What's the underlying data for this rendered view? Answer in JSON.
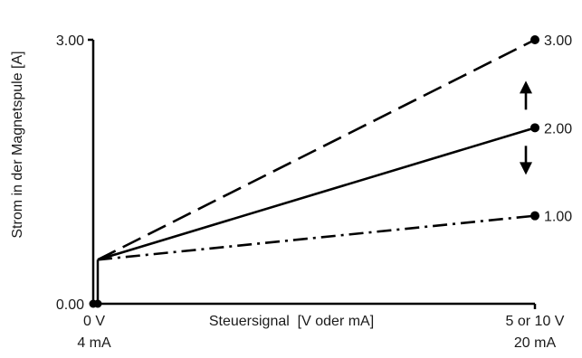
{
  "chart_data": {
    "type": "line",
    "ylabel": "Strom in der Magnetspule [A]",
    "xlabel": "Steuersignal  [V oder mA]",
    "ylim": [
      0,
      3
    ],
    "y_ticks": [
      "3.00",
      "0.00"
    ],
    "x_ticks": [
      {
        "line1": "0 V",
        "line2": "4 mA"
      },
      {
        "line1": "5 or 10 V",
        "line2": "20 mA"
      }
    ],
    "x_range": [
      0,
      1
    ],
    "offset_level": 0.5,
    "series": [
      {
        "style": "dashed",
        "values": [
          [
            0,
            0.5
          ],
          [
            1,
            3.0
          ]
        ],
        "end_label": "3.00"
      },
      {
        "style": "solid",
        "values": [
          [
            0,
            0.5
          ],
          [
            1,
            2.0
          ]
        ],
        "end_label": "2.00"
      },
      {
        "style": "dashdot",
        "values": [
          [
            0,
            0.5
          ],
          [
            1,
            1.0
          ]
        ],
        "end_label": "1.00"
      }
    ],
    "arrows": [
      "up",
      "down"
    ],
    "grid": false,
    "line_color": "#000000"
  }
}
